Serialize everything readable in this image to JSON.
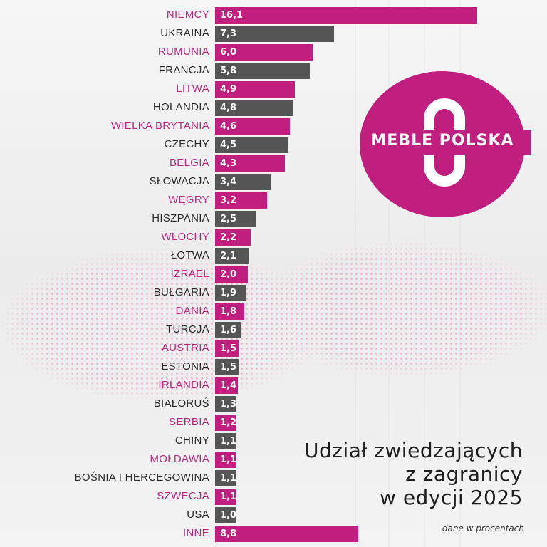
{
  "title": {
    "line1": "Udział zwiedzających",
    "line2": "z zagranicy",
    "line3": "w edycji 2025"
  },
  "subtitle": "dane w procentach",
  "logo": {
    "text": "MEBLE POLSKA"
  },
  "colors": {
    "pink": "#c01f7f",
    "gray": "#555555",
    "pink_label": "#b8287e",
    "gray_label": "#2d2d2d"
  },
  "chart_data": {
    "type": "bar",
    "orientation": "horizontal",
    "title": "Udział zwiedzających z zagranicy w edycji 2025",
    "subtitle": "dane w procentach",
    "xlabel": "",
    "ylabel": "",
    "unit": "%",
    "categories": [
      "NIEMCY",
      "UKRAINA",
      "RUMUNIA",
      "FRANCJA",
      "LITWA",
      "HOLANDIA",
      "WIELKA BRYTANIA",
      "CZECHY",
      "BELGIA",
      "SŁOWACJA",
      "WĘGRY",
      "HISZPANIA",
      "WŁOCHY",
      "ŁOTWA",
      "IZRAEL",
      "BUŁGARIA",
      "DANIA",
      "TURCJA",
      "AUSTRIA",
      "ESTONIA",
      "IRLANDIA",
      "BIAŁORUŚ",
      "SERBIA",
      "CHINY",
      "MOŁDAWIA",
      "BOŚNIA I HERCEGOWINA",
      "SZWECJA",
      "USA",
      "INNE"
    ],
    "values": [
      16.1,
      7.3,
      6.0,
      5.8,
      4.9,
      4.8,
      4.6,
      4.5,
      4.3,
      3.4,
      3.2,
      2.5,
      2.2,
      2.1,
      2.0,
      1.9,
      1.8,
      1.6,
      1.5,
      1.5,
      1.4,
      1.3,
      1.2,
      1.1,
      1.1,
      1.1,
      1.1,
      1.0,
      8.8
    ],
    "value_labels": [
      "16,1",
      "7,3",
      "6,0",
      "5,8",
      "4,9",
      "4,8",
      "4,6",
      "4,5",
      "4,3",
      "3,4",
      "3,2",
      "2,5",
      "2,2",
      "2,1",
      "2,0",
      "1,9",
      "1,8",
      "1,6",
      "1,5",
      "1,5",
      "1,4",
      "1,3",
      "1,2",
      "1,1",
      "1,1",
      "1,1",
      "1,1",
      "1,0",
      "8,8"
    ],
    "bar_colors_alternate": [
      "pink",
      "gray"
    ],
    "grid": false,
    "legend": null
  }
}
